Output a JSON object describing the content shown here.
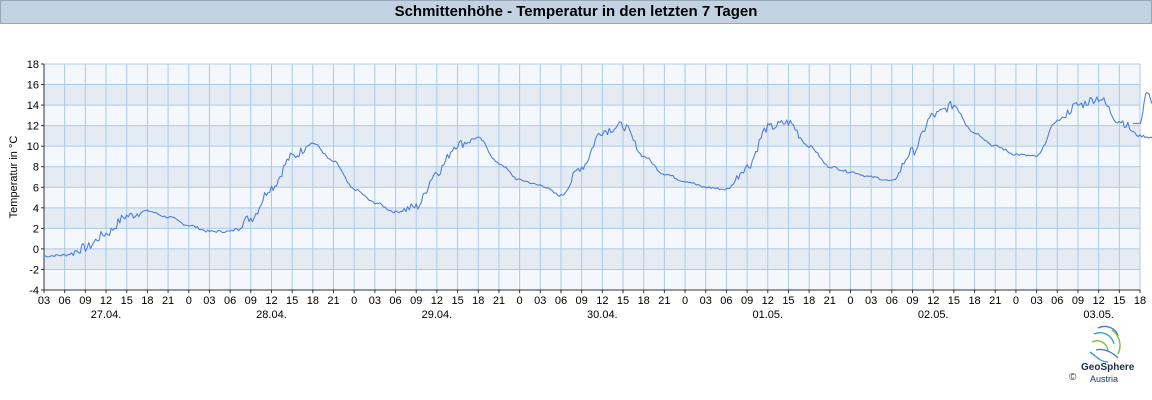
{
  "header": {
    "title": "Schmittenhöhe - Temperatur in den letzten 7 Tagen"
  },
  "chart_data": {
    "type": "line",
    "title": "Schmittenhöhe - Temperatur in den letzten 7 Tagen",
    "ylabel": "Temperatur in °C",
    "xlabel": "",
    "ylim": [
      -4,
      18
    ],
    "yticks": [
      -4,
      -2,
      0,
      2,
      4,
      6,
      8,
      10,
      12,
      14,
      16,
      18
    ],
    "xticks_hour": [
      "03",
      "06",
      "09",
      "12",
      "15",
      "18",
      "21",
      "0",
      "03",
      "06",
      "09",
      "12",
      "15",
      "18",
      "21",
      "0",
      "03",
      "06",
      "09",
      "12",
      "15",
      "18",
      "21",
      "0",
      "03",
      "06",
      "09",
      "12",
      "15",
      "18",
      "21",
      "0",
      "03",
      "06",
      "09",
      "12",
      "15",
      "18",
      "21",
      "0",
      "03",
      "06",
      "09",
      "12",
      "15",
      "18",
      "21",
      "0",
      "03",
      "06",
      "09",
      "12",
      "15",
      "18"
    ],
    "date_labels": [
      "27.04.",
      "28.04.",
      "29.04.",
      "30.04.",
      "01.05.",
      "02.05.",
      "03.05."
    ],
    "grid": true,
    "line_color": "#4f7fdb",
    "series": [
      {
        "x": [
          0,
          3,
          6,
          9,
          12,
          15,
          18,
          21,
          24,
          27,
          30,
          33,
          36,
          39,
          42,
          45,
          48,
          51,
          54,
          57,
          60,
          63,
          66,
          69,
          72,
          75,
          78,
          81,
          84,
          87,
          90,
          93,
          96,
          99,
          102,
          105,
          108,
          111,
          114,
          117,
          120,
          123,
          126,
          129,
          132,
          135,
          138,
          141,
          144,
          147,
          150,
          153,
          156,
          159,
          162
        ],
        "values": [
          -0.7,
          -0.6,
          0.1,
          1.5,
          3.2,
          3.7,
          3.1,
          2.3,
          1.7,
          1.7,
          3.0,
          6.0,
          9.0,
          10.3,
          8.5,
          5.8,
          4.5,
          3.6,
          4.1,
          7.5,
          10.2,
          10.8,
          8.3,
          6.7,
          6.2,
          5.2,
          8.0,
          11.5,
          12.0,
          9.0,
          7.3,
          6.6,
          6.0,
          5.8,
          8.0,
          11.8,
          12.3,
          10.0,
          8.0,
          7.5,
          7.0,
          6.6,
          9.5,
          13.0,
          14.0,
          11.3,
          10.0,
          9.2,
          9.0,
          12.5,
          14.0,
          14.7,
          12.5,
          11.0,
          10.7
        ]
      }
    ],
    "series_start": "27.04. 03:00",
    "series_step_hours": 3,
    "extra_points_after_step": [
      14.0,
      15.3,
      12.2
    ]
  },
  "footer": {
    "copyright": "©",
    "brand": "GeoSphere",
    "brand_sub": "Austria"
  }
}
